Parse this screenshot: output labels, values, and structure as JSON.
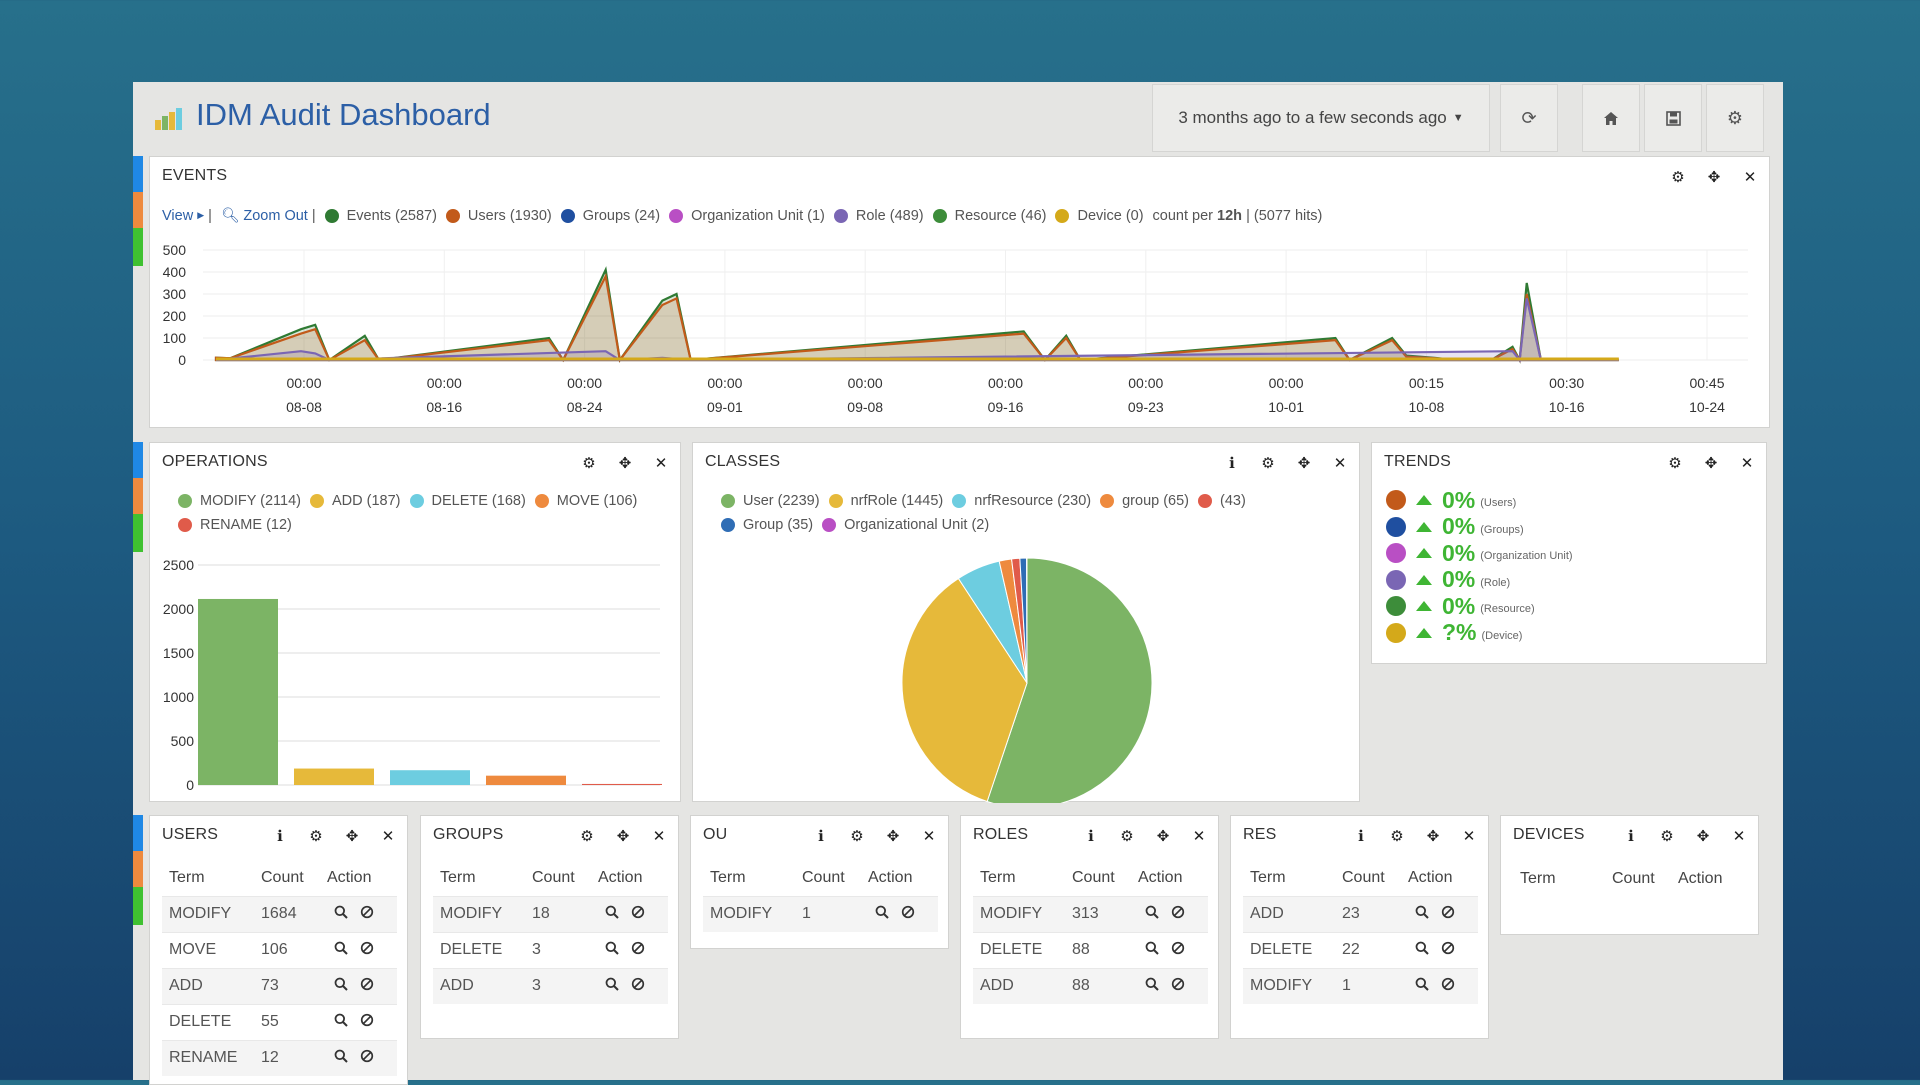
{
  "header": {
    "title": "IDM Audit Dashboard",
    "timerange": "3 months ago to a few seconds ago"
  },
  "events": {
    "title": "EVENTS",
    "view_label": "View",
    "zoom_out_label": "Zoom Out",
    "separator": "|",
    "legend": [
      {
        "label": "Events (2587)",
        "color": "#2f7a33"
      },
      {
        "label": "Users (1930)",
        "color": "#c25a1a"
      },
      {
        "label": "Groups (24)",
        "color": "#1f4fa0"
      },
      {
        "label": "Organization Unit (1)",
        "color": "#b94fc4"
      },
      {
        "label": "Role (489)",
        "color": "#7a66b4"
      },
      {
        "label": "Resource (46)",
        "color": "#3d8d3a"
      },
      {
        "label": "Device (0)",
        "color": "#d4a91a"
      }
    ],
    "count_prefix": "count per",
    "count_interval": "12h",
    "hits": "| (5077 hits)"
  },
  "operations": {
    "title": "OPERATIONS",
    "legend": [
      {
        "label": "MODIFY (2114)",
        "color": "#7cb465"
      },
      {
        "label": "ADD (187)",
        "color": "#e6b93a"
      },
      {
        "label": "DELETE (168)",
        "color": "#6dcde0"
      },
      {
        "label": "MOVE (106)",
        "color": "#ee8a3e"
      },
      {
        "label": "RENAME (12)",
        "color": "#e05b4a"
      }
    ]
  },
  "classes": {
    "title": "CLASSES",
    "legend": [
      {
        "label": "User (2239)",
        "color": "#7cb465"
      },
      {
        "label": "nrfRole (1445)",
        "color": "#e6b93a"
      },
      {
        "label": "nrfResource (230)",
        "color": "#6dcde0"
      },
      {
        "label": "group (65)",
        "color": "#ee8a3e"
      },
      {
        "label": "(43)",
        "color": "#e05b4a"
      },
      {
        "label": "Group (35)",
        "color": "#2f6db5"
      },
      {
        "label": "Organizational Unit (2)",
        "color": "#b94fc4"
      }
    ]
  },
  "trends": {
    "title": "TRENDS",
    "items": [
      {
        "value": "0%",
        "label": "(Users)",
        "color": "#c25a1a"
      },
      {
        "value": "0%",
        "label": "(Groups)",
        "color": "#1f4fa0"
      },
      {
        "value": "0%",
        "label": "(Organization Unit)",
        "color": "#b94fc4"
      },
      {
        "value": "0%",
        "label": "(Role)",
        "color": "#7a66b4"
      },
      {
        "value": "0%",
        "label": "(Resource)",
        "color": "#3d8d3a"
      },
      {
        "value": "?%",
        "label": "(Device)",
        "color": "#d4a91a"
      }
    ]
  },
  "tables": {
    "col_term": "Term",
    "col_count": "Count",
    "col_action": "Action",
    "users": {
      "title": "USERS",
      "rows": [
        [
          "MODIFY",
          "1684"
        ],
        [
          "MOVE",
          "106"
        ],
        [
          "ADD",
          "73"
        ],
        [
          "DELETE",
          "55"
        ],
        [
          "RENAME",
          "12"
        ]
      ]
    },
    "groups": {
      "title": "GROUPS",
      "rows": [
        [
          "MODIFY",
          "18"
        ],
        [
          "DELETE",
          "3"
        ],
        [
          "ADD",
          "3"
        ]
      ]
    },
    "ou": {
      "title": "OU",
      "rows": [
        [
          "MODIFY",
          "1"
        ]
      ]
    },
    "roles": {
      "title": "ROLES",
      "rows": [
        [
          "MODIFY",
          "313"
        ],
        [
          "DELETE",
          "88"
        ],
        [
          "ADD",
          "88"
        ]
      ]
    },
    "res": {
      "title": "RES",
      "rows": [
        [
          "ADD",
          "23"
        ],
        [
          "DELETE",
          "22"
        ],
        [
          "MODIFY",
          "1"
        ]
      ]
    },
    "devices": {
      "title": "DEVICES",
      "rows": []
    }
  },
  "chart_data": [
    {
      "type": "area",
      "title": "EVENTS",
      "y_ticks": [
        "500",
        "400",
        "300",
        "200",
        "100",
        "0"
      ],
      "ylim": [
        0,
        500
      ],
      "x_ticks": [
        {
          "time": "00:00",
          "date": "08-08"
        },
        {
          "time": "00:00",
          "date": "08-16"
        },
        {
          "time": "00:00",
          "date": "08-24"
        },
        {
          "time": "00:00",
          "date": "09-01"
        },
        {
          "time": "00:00",
          "date": "09-08"
        },
        {
          "time": "00:00",
          "date": "09-16"
        },
        {
          "time": "00:00",
          "date": "09-23"
        },
        {
          "time": "00:00",
          "date": "10-01"
        },
        {
          "time": "00:15",
          "date": "10-08"
        },
        {
          "time": "00:30",
          "date": "10-16"
        },
        {
          "time": "00:45",
          "date": "10-24"
        }
      ],
      "series": [
        {
          "name": "Events",
          "color": "#2f7a33",
          "points": [
            [
              0.0,
              10
            ],
            [
              0.01,
              8
            ],
            [
              0.06,
              140
            ],
            [
              0.07,
              160
            ],
            [
              0.08,
              0
            ],
            [
              0.105,
              110
            ],
            [
              0.115,
              0
            ],
            [
              0.235,
              100
            ],
            [
              0.245,
              0
            ],
            [
              0.275,
              410
            ],
            [
              0.285,
              0
            ],
            [
              0.315,
              270
            ],
            [
              0.325,
              300
            ],
            [
              0.335,
              0
            ],
            [
              0.57,
              130
            ],
            [
              0.585,
              0
            ],
            [
              0.6,
              110
            ],
            [
              0.61,
              0
            ],
            [
              0.79,
              100
            ],
            [
              0.8,
              0
            ],
            [
              0.83,
              100
            ],
            [
              0.84,
              20
            ],
            [
              0.86,
              10
            ],
            [
              0.875,
              0
            ],
            [
              0.9,
              0
            ],
            [
              0.915,
              60
            ],
            [
              0.92,
              0
            ],
            [
              0.925,
              350
            ],
            [
              0.935,
              0
            ],
            [
              0.99,
              0
            ]
          ]
        },
        {
          "name": "Users",
          "color": "#c25a1a",
          "points": [
            [
              0.0,
              10
            ],
            [
              0.01,
              8
            ],
            [
              0.06,
              120
            ],
            [
              0.07,
              140
            ],
            [
              0.08,
              0
            ],
            [
              0.105,
              90
            ],
            [
              0.115,
              0
            ],
            [
              0.235,
              90
            ],
            [
              0.245,
              0
            ],
            [
              0.275,
              380
            ],
            [
              0.285,
              0
            ],
            [
              0.315,
              250
            ],
            [
              0.325,
              280
            ],
            [
              0.335,
              0
            ],
            [
              0.57,
              120
            ],
            [
              0.585,
              0
            ],
            [
              0.6,
              100
            ],
            [
              0.61,
              0
            ],
            [
              0.79,
              90
            ],
            [
              0.8,
              0
            ],
            [
              0.83,
              90
            ],
            [
              0.84,
              15
            ],
            [
              0.86,
              8
            ],
            [
              0.875,
              0
            ],
            [
              0.9,
              0
            ],
            [
              0.915,
              50
            ],
            [
              0.92,
              0
            ],
            [
              0.925,
              300
            ],
            [
              0.935,
              0
            ],
            [
              0.99,
              0
            ]
          ]
        },
        {
          "name": "Role",
          "color": "#7a66b4",
          "points": [
            [
              0.0,
              0
            ],
            [
              0.06,
              40
            ],
            [
              0.07,
              30
            ],
            [
              0.08,
              0
            ],
            [
              0.275,
              40
            ],
            [
              0.285,
              0
            ],
            [
              0.315,
              10
            ],
            [
              0.335,
              0
            ],
            [
              0.915,
              40
            ],
            [
              0.92,
              0
            ],
            [
              0.925,
              280
            ],
            [
              0.935,
              0
            ],
            [
              0.99,
              0
            ]
          ]
        }
      ]
    },
    {
      "type": "bar",
      "title": "OPERATIONS",
      "categories": [
        "MODIFY",
        "ADD",
        "DELETE",
        "MOVE",
        "RENAME"
      ],
      "values": [
        2114,
        187,
        168,
        106,
        12
      ],
      "colors": [
        "#7cb465",
        "#e6b93a",
        "#6dcde0",
        "#ee8a3e",
        "#e05b4a"
      ],
      "ylim": [
        0,
        2500
      ],
      "y_ticks": [
        "2500",
        "2000",
        "1500",
        "1000",
        "500",
        "0"
      ]
    },
    {
      "type": "pie",
      "title": "CLASSES",
      "categories": [
        "User",
        "nrfRole",
        "nrfResource",
        "group",
        "(blank)",
        "Group",
        "Organizational Unit"
      ],
      "values": [
        2239,
        1445,
        230,
        65,
        43,
        35,
        2
      ],
      "colors": [
        "#7cb465",
        "#e6b93a",
        "#6dcde0",
        "#ee8a3e",
        "#e05b4a",
        "#2f6db5",
        "#b94fc4"
      ]
    }
  ]
}
